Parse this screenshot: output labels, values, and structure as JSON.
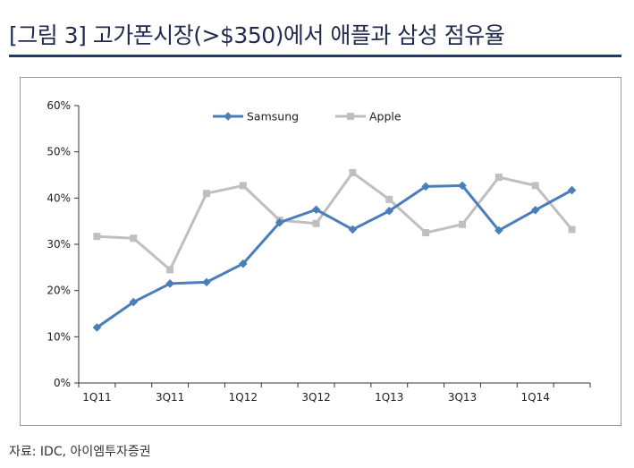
{
  "header": {
    "title": "[그림 3]   고가폰시장(>$350)에서 애플과 삼성 점유율"
  },
  "footer": {
    "source": "자료: IDC, 아이엠투자증권"
  },
  "chart_data": {
    "type": "line",
    "title": "",
    "xlabel": "",
    "ylabel": "",
    "ylim": [
      0,
      60
    ],
    "y_ticks": [
      "0%",
      "10%",
      "20%",
      "30%",
      "40%",
      "50%",
      "60%"
    ],
    "x_tick_labels": [
      "1Q11",
      "3Q11",
      "1Q12",
      "3Q12",
      "1Q13",
      "3Q13",
      "1Q14"
    ],
    "x": [
      "1Q11",
      "2Q11",
      "3Q11",
      "4Q11",
      "1Q12",
      "2Q12",
      "3Q12",
      "4Q12",
      "1Q13",
      "2Q13",
      "3Q13",
      "4Q13",
      "1Q14",
      "2Q14"
    ],
    "grid": false,
    "legend_position": "top-center",
    "series": [
      {
        "name": "Samsung",
        "color": "#4a7ebb",
        "marker": "diamond",
        "values": [
          12,
          17.5,
          21.5,
          21.8,
          25.8,
          34.7,
          37.5,
          33.2,
          37.2,
          42.5,
          42.7,
          33,
          37.4,
          41.7
        ]
      },
      {
        "name": "Apple",
        "color": "#bfbfbf",
        "marker": "square",
        "values": [
          31.7,
          31.3,
          24.5,
          41,
          42.7,
          35.2,
          34.5,
          45.5,
          39.7,
          32.5,
          34.3,
          44.5,
          42.7,
          33.2
        ]
      }
    ]
  }
}
